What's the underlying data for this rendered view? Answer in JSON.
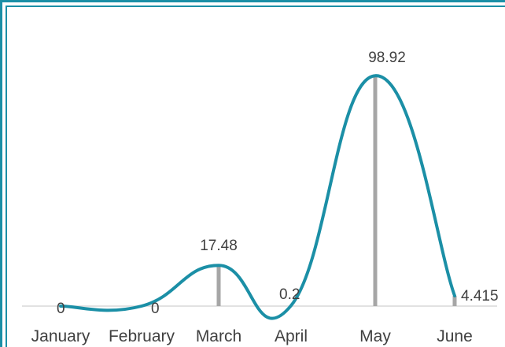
{
  "chart_data": {
    "type": "line",
    "title": "",
    "xlabel": "",
    "ylabel": "",
    "categories": [
      "January",
      "February",
      "March",
      "April",
      "May",
      "June"
    ],
    "series": [
      {
        "values": [
          0,
          0,
          17.48,
          0.2,
          98.92,
          4.415
        ],
        "data_labels": [
          "0",
          "0",
          "17.48",
          "0.2",
          "98.92",
          "4.415"
        ]
      }
    ],
    "ylim": [
      0,
      100
    ],
    "grid": false,
    "legend": "none",
    "smooth": true,
    "colors": {
      "line": "#1b8fa6",
      "drop_lines": "#a6a6a6",
      "axis": "#d9d9d9",
      "frame": "#1b8fa6"
    }
  }
}
